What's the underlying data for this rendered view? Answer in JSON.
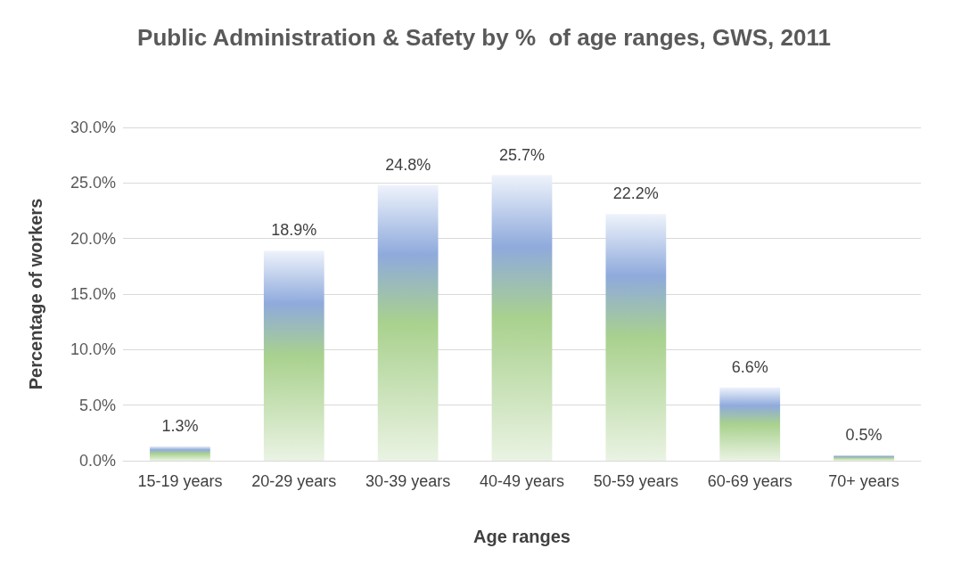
{
  "chart_data": {
    "type": "bar",
    "title": "Public Administration & Safety by %  of age ranges, GWS, 2011",
    "xlabel": "Age ranges",
    "ylabel": "Percentage of workers",
    "categories": [
      "15-19 years",
      "20-29 years",
      "30-39 years",
      "40-49 years",
      "50-59 years",
      "60-69 years",
      "70+ years"
    ],
    "values": [
      1.3,
      18.9,
      24.8,
      25.7,
      22.2,
      6.6,
      0.5
    ],
    "value_labels": [
      "1.3%",
      "18.9%",
      "24.8%",
      "25.7%",
      "22.2%",
      "6.6%",
      "0.5%"
    ],
    "color": "#a9d18e",
    "ylim": [
      0,
      30
    ],
    "yticks": [
      {
        "value": 0,
        "label": "0.0%"
      },
      {
        "value": 5,
        "label": "5.0%"
      },
      {
        "value": 10,
        "label": "10.0%"
      },
      {
        "value": 15,
        "label": "15.0%"
      },
      {
        "value": 20,
        "label": "20.0%"
      },
      {
        "value": 25,
        "label": "25.0%"
      },
      {
        "value": 30,
        "label": "30.0%"
      }
    ],
    "grid": "y"
  }
}
